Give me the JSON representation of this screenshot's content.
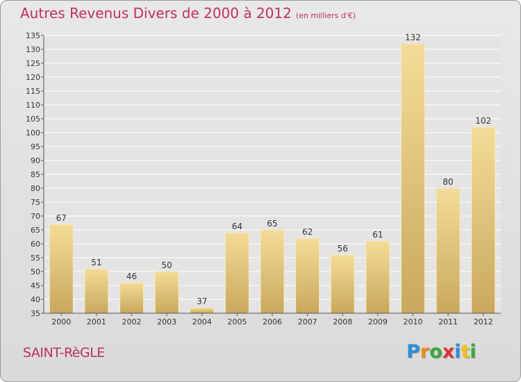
{
  "title": "Autres Revenus Divers de 2000 à 2012",
  "title_unit": "(en milliers d'€)",
  "town": "SAINT-RèGLE",
  "logo": {
    "text": "Proxiti",
    "letters": [
      "P",
      "r",
      "o",
      "x",
      "i",
      "t",
      "i"
    ],
    "colors": [
      "#2b8fd6",
      "#f28a1a",
      "#3ca83c",
      "#e0332e",
      "#2b8fd6",
      "#f2c21a",
      "#3ca83c"
    ]
  },
  "colors": {
    "accent": "#c0305a",
    "bar_light": "#f4dc98",
    "bar_dark": "#c8a85c"
  },
  "chart_data": {
    "type": "bar",
    "title": "Autres Revenus Divers de 2000 à 2012",
    "categories": [
      "2000",
      "2001",
      "2002",
      "2003",
      "2004",
      "2005",
      "2006",
      "2007",
      "2008",
      "2009",
      "2010",
      "2011",
      "2012"
    ],
    "values": [
      67,
      51,
      46,
      50,
      37,
      64,
      65,
      62,
      56,
      61,
      132,
      80,
      102
    ],
    "ylim": [
      35,
      135
    ],
    "yticks": [
      35,
      40,
      45,
      50,
      55,
      60,
      65,
      70,
      75,
      80,
      85,
      90,
      95,
      100,
      105,
      110,
      115,
      120,
      125,
      130,
      135
    ],
    "grid": true,
    "xlabel": "",
    "ylabel": ""
  }
}
